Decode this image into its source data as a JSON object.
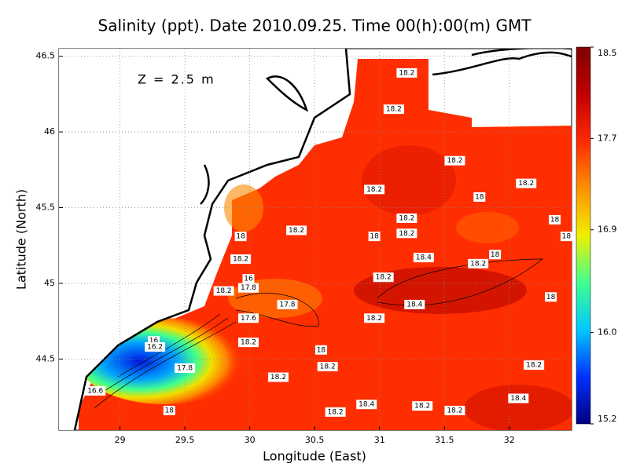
{
  "chart_data": {
    "type": "contour-map",
    "title": "Salinity (ppt). Date 2010.09.25. Time 00(h):00(m) GMT",
    "annotation": "Z = 2.5 m",
    "x_label": "Longitude (East)",
    "y_label": "Latitude (North)",
    "xlim": [
      28.53,
      32.48
    ],
    "ylim": [
      44.03,
      46.55
    ],
    "xticks": [
      29,
      29.5,
      30,
      30.5,
      31,
      31.5,
      32
    ],
    "yticks": [
      44.5,
      45,
      45.5,
      46,
      46.5
    ],
    "grid": true,
    "colorbar_lim": [
      15.2,
      18.5
    ],
    "colorbar_ticks": [
      15.2,
      {
        "value": 16,
        "label": "16.0"
      },
      16.9,
      17.7,
      18.5
    ],
    "colormap": [
      "#00007f",
      "#0030ff",
      "#00c8ff",
      "#40ff90",
      "#f0f000",
      "#ff9000",
      "#ff2a00",
      "#c00000",
      "#800000"
    ],
    "contour_labels": [
      {
        "value": 18.2,
        "lon": 31.21,
        "lat": 46.39
      },
      {
        "value": 18.2,
        "lon": 31.11,
        "lat": 46.15
      },
      {
        "value": 18.2,
        "lon": 31.58,
        "lat": 45.81
      },
      {
        "value": 18.2,
        "lon": 30.96,
        "lat": 45.62
      },
      {
        "value": 18.2,
        "lon": 32.13,
        "lat": 45.66
      },
      {
        "value": 18,
        "lon": 31.77,
        "lat": 45.57
      },
      {
        "value": 18.2,
        "lon": 31.21,
        "lat": 45.43
      },
      {
        "value": 18,
        "lon": 32.35,
        "lat": 45.42
      },
      {
        "value": 18.2,
        "lon": 30.36,
        "lat": 45.35
      },
      {
        "value": 18,
        "lon": 29.93,
        "lat": 45.31
      },
      {
        "value": 18,
        "lon": 30.96,
        "lat": 45.31
      },
      {
        "value": 18.2,
        "lon": 31.21,
        "lat": 45.33
      },
      {
        "value": 18,
        "lon": 32.44,
        "lat": 45.31
      },
      {
        "value": 18.2,
        "lon": 29.93,
        "lat": 45.16
      },
      {
        "value": 18.4,
        "lon": 31.34,
        "lat": 45.17
      },
      {
        "value": 18,
        "lon": 31.89,
        "lat": 45.19
      },
      {
        "value": 18.2,
        "lon": 31.76,
        "lat": 45.13
      },
      {
        "value": 16,
        "lon": 29.99,
        "lat": 45.03
      },
      {
        "value": 18.2,
        "lon": 31.03,
        "lat": 45.04
      },
      {
        "value": 17.8,
        "lon": 29.99,
        "lat": 44.97
      },
      {
        "value": 18.2,
        "lon": 29.8,
        "lat": 44.95
      },
      {
        "value": 18,
        "lon": 32.32,
        "lat": 44.91
      },
      {
        "value": 18.4,
        "lon": 31.27,
        "lat": 44.86
      },
      {
        "value": 17.8,
        "lon": 30.29,
        "lat": 44.86
      },
      {
        "value": 17.6,
        "lon": 29.99,
        "lat": 44.77
      },
      {
        "value": 18.2,
        "lon": 30.96,
        "lat": 44.77
      },
      {
        "value": 18.2,
        "lon": 29.99,
        "lat": 44.61
      },
      {
        "value": 16,
        "lon": 29.26,
        "lat": 44.62
      },
      {
        "value": 16.2,
        "lon": 29.27,
        "lat": 44.58
      },
      {
        "value": 18,
        "lon": 30.55,
        "lat": 44.56
      },
      {
        "value": 17.8,
        "lon": 29.5,
        "lat": 44.44
      },
      {
        "value": 18.2,
        "lon": 30.6,
        "lat": 44.45
      },
      {
        "value": 18.2,
        "lon": 32.19,
        "lat": 44.46
      },
      {
        "value": 18.2,
        "lon": 30.22,
        "lat": 44.38
      },
      {
        "value": 16.6,
        "lon": 28.81,
        "lat": 44.29
      },
      {
        "value": 18.4,
        "lon": 32.07,
        "lat": 44.24
      },
      {
        "value": 18,
        "lon": 29.38,
        "lat": 44.16
      },
      {
        "value": 18.4,
        "lon": 30.9,
        "lat": 44.2
      },
      {
        "value": 18.2,
        "lon": 31.33,
        "lat": 44.19
      },
      {
        "value": 18.2,
        "lon": 31.58,
        "lat": 44.16
      },
      {
        "value": 18.2,
        "lon": 30.66,
        "lat": 44.15
      }
    ]
  }
}
